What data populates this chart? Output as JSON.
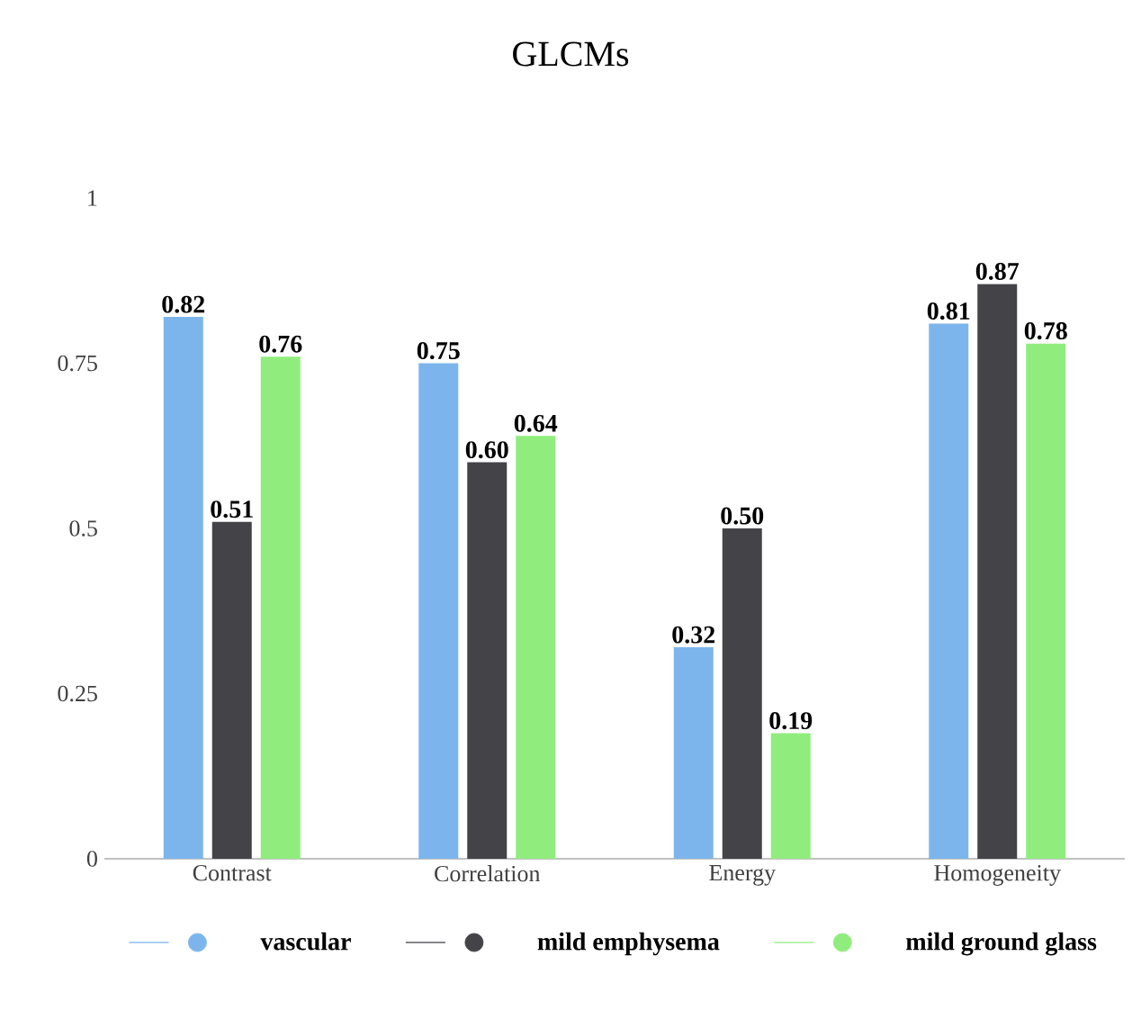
{
  "chart_data": {
    "type": "bar",
    "title": "GLCMs",
    "categories": [
      "Contrast",
      "Correlation",
      "Energy",
      "Homogeneity"
    ],
    "series": [
      {
        "name": "vascular",
        "color": "#7cb5ec",
        "values": [
          0.82,
          0.75,
          0.32,
          0.81
        ],
        "value_labels": [
          "0.82",
          "0.75",
          "0.32",
          "0.81"
        ]
      },
      {
        "name": "mild emphysema",
        "color": "#434348",
        "values": [
          0.51,
          0.6,
          0.5,
          0.87
        ],
        "value_labels": [
          "0.51",
          "0.60",
          "0.50",
          "0.87"
        ]
      },
      {
        "name": "mild ground glass",
        "color": "#90ed7d",
        "values": [
          0.76,
          0.64,
          0.19,
          0.78
        ],
        "value_labels": [
          "0.76",
          "0.64",
          "0.19",
          "0.78"
        ]
      }
    ],
    "ylim": [
      0,
      1
    ],
    "yticks": [
      0,
      0.25,
      0.5,
      0.75,
      1
    ],
    "legend": "bottom",
    "marker": "circle",
    "grid": false
  }
}
